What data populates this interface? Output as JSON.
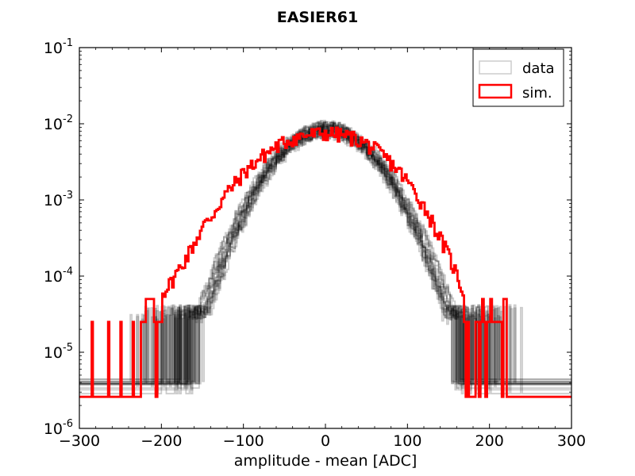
{
  "chart_data": {
    "type": "histogram",
    "title": "EASIER61",
    "xlabel": "amplitude - mean [ADC]",
    "ylabel": "",
    "yscale": "log",
    "xlim": [
      -300,
      300
    ],
    "ylim": [
      1e-06,
      0.1
    ],
    "xticks": [
      -300,
      -200,
      -100,
      0,
      100,
      200,
      300
    ],
    "xtick_labels": [
      "−300",
      "−200",
      "−100",
      "0",
      "100",
      "200",
      "300"
    ],
    "yticks": [
      1e-06,
      1e-05,
      0.0001,
      0.001,
      0.01,
      0.1
    ],
    "ytick_base": "10",
    "ytick_exponents": [
      "-6",
      "-5",
      "-4",
      "-3",
      "-2",
      "-1"
    ],
    "legend": {
      "position": "top-right",
      "entries": [
        "data",
        "sim."
      ]
    },
    "series": [
      {
        "name": "data",
        "color": "#000000",
        "opacity": 0.2,
        "curve_count": 16,
        "description": "many overlaid normalized histograms; single-count level at approx 2.7e-6",
        "peak": 0.0085,
        "sigma": 45,
        "range": [
          -200,
          240
        ]
      },
      {
        "name": "sim.",
        "color": "#ff0000",
        "baseline": 2.6e-06,
        "single_count_level": 2.5e-05,
        "isolated_bins": [
          -285,
          -265,
          -250,
          -235
        ],
        "x": [
          -225,
          -210,
          -200,
          -190,
          -180,
          -170,
          -160,
          -150,
          -140,
          -130,
          -120,
          -110,
          -100,
          -90,
          -80,
          -70,
          -60,
          -50,
          -40,
          -30,
          -20,
          -10,
          0,
          10,
          20,
          30,
          40,
          50,
          60,
          70,
          80,
          90,
          100,
          110,
          120,
          130,
          140,
          150,
          160,
          170,
          180,
          190,
          200,
          210,
          220
        ],
        "y": [
          2.5e-05,
          4e-05,
          6e-05,
          8e-05,
          0.00012,
          0.00018,
          0.00028,
          0.00045,
          0.0006,
          0.0009,
          0.0013,
          0.0017,
          0.0023,
          0.0029,
          0.0036,
          0.0043,
          0.0051,
          0.0058,
          0.0064,
          0.0069,
          0.0072,
          0.0074,
          0.0075,
          0.0074,
          0.0071,
          0.0067,
          0.0061,
          0.0054,
          0.0046,
          0.0038,
          0.003,
          0.0023,
          0.0017,
          0.0012,
          0.0008,
          0.0005,
          0.0003,
          0.00018,
          0.0001,
          5e-05,
          3e-05,
          2.5e-05,
          2.5e-05,
          2.5e-05,
          2.5e-05
        ]
      }
    ]
  }
}
